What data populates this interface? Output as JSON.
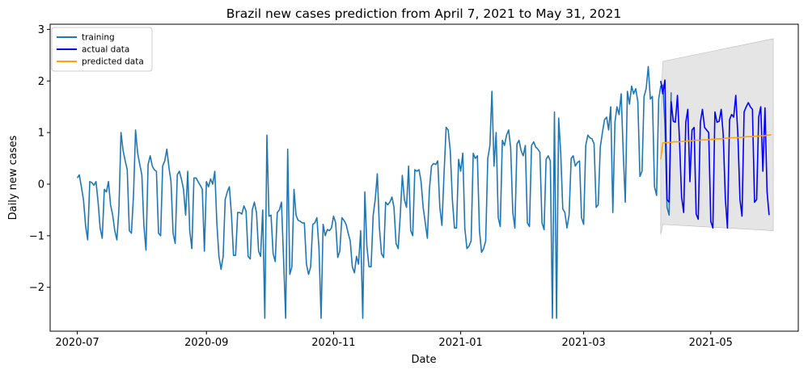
{
  "chart_data": {
    "type": "line",
    "title": "Brazil new cases prediction from April 7, 2021 to May 31, 2021",
    "xlabel": "Date",
    "ylabel": "Daily new cases",
    "x_range": [
      "2020-06-18",
      "2021-06-12"
    ],
    "ylim": [
      -2.85,
      3.1
    ],
    "x_ticks": [
      "2020-07",
      "2020-09",
      "2020-11",
      "2021-01",
      "2021-03",
      "2021-05"
    ],
    "y_ticks": [
      -2,
      -1,
      0,
      1,
      2,
      3
    ],
    "grid": false,
    "legend_position": "top-left",
    "colors": {
      "training": "#1f77b4",
      "actual": "#0000ff",
      "predicted": "#ffa500",
      "band": "#d3d3d3"
    },
    "series": [
      {
        "name": "training",
        "start_date": "2020-07-01",
        "values": [
          0.12,
          0.18,
          -0.05,
          -0.3,
          -0.8,
          -1.08,
          0.05,
          0.03,
          -0.02,
          0.05,
          -0.35,
          -0.85,
          -1.05,
          -0.1,
          -0.15,
          0.05,
          -0.4,
          -0.6,
          -0.9,
          -1.08,
          -0.5,
          1.0,
          0.65,
          0.45,
          0.28,
          -0.9,
          -0.95,
          -0.2,
          1.05,
          0.6,
          0.38,
          0.18,
          -0.8,
          -1.28,
          0.38,
          0.55,
          0.35,
          0.28,
          0.25,
          -0.95,
          -1.0,
          0.35,
          0.45,
          0.68,
          0.32,
          0.05,
          -0.95,
          -1.15,
          0.18,
          0.25,
          0.1,
          -0.1,
          -0.6,
          0.25,
          -0.9,
          -1.25,
          0.12,
          0.12,
          0.05,
          -0.02,
          -0.1,
          -1.3,
          0.05,
          -0.05,
          0.1,
          0.0,
          0.25,
          -0.75,
          -1.4,
          -1.65,
          -1.4,
          -0.3,
          -0.15,
          -0.05,
          -0.6,
          -1.38,
          -1.38,
          -0.55,
          -0.55,
          -0.58,
          -0.42,
          -0.52,
          -1.4,
          -1.45,
          -0.5,
          -0.35,
          -0.55,
          -1.3,
          -1.4,
          -0.5,
          -2.6,
          0.95,
          -0.62,
          -0.6,
          -1.35,
          -1.5,
          -0.55,
          -0.5,
          -0.35,
          -1.45,
          -2.6,
          0.68,
          -1.75,
          -1.6,
          -0.1,
          -0.6,
          -0.7,
          -0.72,
          -0.75,
          -0.75,
          -1.55,
          -1.75,
          -1.6,
          -0.78,
          -0.75,
          -0.65,
          -1.25,
          -2.6,
          -0.78,
          -1.0,
          -0.88,
          -0.9,
          -0.85,
          -0.62,
          -0.75,
          -1.42,
          -1.3,
          -0.65,
          -0.7,
          -0.78,
          -0.95,
          -1.1,
          -1.6,
          -1.72,
          -1.4,
          -1.55,
          -0.9,
          -2.6,
          -0.15,
          -1.2,
          -1.6,
          -1.6,
          -0.6,
          -0.3,
          0.2,
          -0.85,
          -1.35,
          -1.42,
          -0.35,
          -0.4,
          -0.35,
          -0.25,
          -0.45,
          -1.15,
          -1.25,
          -0.6,
          0.17,
          -0.3,
          -0.45,
          0.35,
          -0.9,
          -1.0,
          0.28,
          0.25,
          0.28,
          0.05,
          -0.45,
          -0.75,
          -1.05,
          -0.1,
          0.35,
          0.4,
          0.38,
          0.45,
          -0.45,
          -0.8,
          0.2,
          1.1,
          1.05,
          0.65,
          -0.3,
          -0.85,
          -0.85,
          0.48,
          0.25,
          0.6,
          -0.85,
          -1.25,
          -1.2,
          -1.1,
          0.6,
          0.5,
          0.55,
          -0.9,
          -1.32,
          -1.25,
          -1.1,
          0.5,
          0.75,
          1.8,
          0.35,
          1.0,
          -0.65,
          -0.82,
          0.85,
          0.75,
          0.95,
          1.05,
          0.7,
          -0.55,
          -0.85,
          0.78,
          0.85,
          0.65,
          0.55,
          0.75,
          -0.75,
          -0.82,
          0.75,
          0.82,
          0.72,
          0.68,
          0.62,
          -0.75,
          -0.88,
          0.48,
          0.55,
          0.45,
          -2.6,
          1.4,
          -2.6,
          1.28,
          0.6,
          -0.48,
          -0.55,
          -0.85,
          -0.6,
          0.5,
          0.55,
          0.35,
          0.42,
          0.45,
          -0.65,
          -0.78,
          0.75,
          0.95,
          0.9,
          0.88,
          0.78,
          -0.45,
          -0.4,
          0.72,
          1.0,
          1.25,
          1.3,
          1.05,
          1.5,
          -0.55,
          1.2,
          1.5,
          1.35,
          1.75,
          0.6,
          -0.35,
          1.8,
          1.55,
          1.9,
          1.75,
          1.85,
          1.6,
          0.15,
          0.25,
          1.7,
          1.85,
          2.28,
          1.65,
          1.7,
          -0.05,
          -0.22,
          1.65,
          1.9,
          1.92,
          1.15,
          -0.45,
          -0.6,
          1.78
        ]
      },
      {
        "name": "actual data",
        "start_date": "2021-04-07",
        "values": [
          2.0,
          1.75,
          2.02,
          -0.3,
          -0.35,
          1.6,
          1.22,
          1.2,
          1.72,
          0.85,
          -0.25,
          -0.55,
          1.2,
          1.45,
          0.05,
          1.05,
          1.1,
          -0.58,
          -0.68,
          1.2,
          1.45,
          1.1,
          1.05,
          1.0,
          -0.72,
          -0.85,
          1.4,
          1.2,
          1.22,
          1.45,
          0.95,
          -0.28,
          -0.85,
          1.25,
          1.35,
          1.3,
          1.72,
          0.95,
          -0.3,
          -0.62,
          1.4,
          1.5,
          1.58,
          1.5,
          1.45,
          -0.35,
          -0.3,
          1.3,
          1.5,
          0.25,
          1.48,
          -0.15,
          -0.6
        ]
      },
      {
        "name": "predicted data",
        "start_date": "2021-04-07",
        "values": [
          0.48,
          0.8,
          0.8,
          0.81,
          0.81,
          0.81,
          0.82,
          0.82,
          0.82,
          0.82,
          0.83,
          0.83,
          0.83,
          0.84,
          0.84,
          0.84,
          0.85,
          0.85,
          0.85,
          0.85,
          0.86,
          0.86,
          0.86,
          0.86,
          0.87,
          0.87,
          0.87,
          0.88,
          0.88,
          0.88,
          0.88,
          0.89,
          0.89,
          0.89,
          0.9,
          0.9,
          0.9,
          0.9,
          0.91,
          0.91,
          0.91,
          0.92,
          0.92,
          0.92,
          0.92,
          0.93,
          0.93,
          0.93,
          0.94,
          0.94,
          0.94,
          0.95,
          0.95,
          0.96
        ]
      }
    ],
    "confidence_band": {
      "start_date": "2021-04-07",
      "end_date": "2021-05-31",
      "upper_start": 1.45,
      "upper_after_jump": 2.38,
      "upper_end": 2.82,
      "lower_start": -0.98,
      "lower_after_jump": -0.78,
      "lower_end": -0.9
    }
  }
}
